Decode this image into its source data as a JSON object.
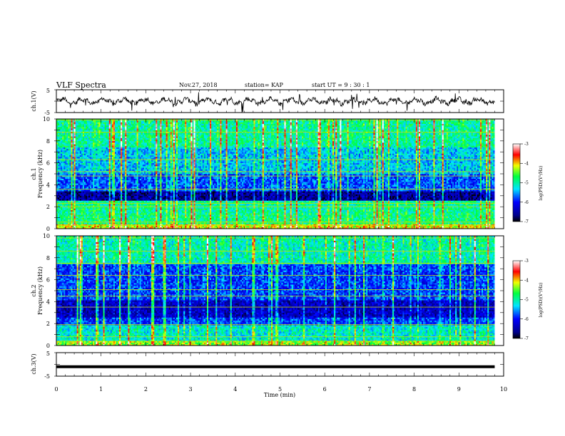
{
  "header": {
    "title": "VLF Spectra",
    "date": "Nov.27, 2018",
    "station": "station= KAP",
    "start": "start  UT =   9 : 30 : 1"
  },
  "chart_data": [
    {
      "type": "line",
      "name": "ch1-waveform",
      "ylabel": "ch.1(V)",
      "ylim": [
        -5,
        5
      ],
      "yticks": [
        "5",
        "-5"
      ],
      "xlim": [
        0,
        10
      ],
      "data_extent": [
        0,
        9.8
      ],
      "color": "#000000"
    },
    {
      "type": "heatmap",
      "name": "ch1-spectrogram",
      "ylabel": "ch.1\nFrequency (kHz)",
      "ylim": [
        0,
        10
      ],
      "yticks": [
        "0",
        "2",
        "4",
        "6",
        "8",
        "10"
      ],
      "xlim": [
        0,
        10
      ],
      "data_extent": [
        0,
        9.8
      ],
      "colorbar": {
        "label": "log(PSD)(V²/Hz)",
        "range": [
          -7,
          -3
        ],
        "ticks": [
          "-3",
          "-4",
          "-5",
          "-6",
          "-7"
        ]
      }
    },
    {
      "type": "heatmap",
      "name": "ch2-spectrogram",
      "ylabel": "ch.2\nFrequency (kHz)",
      "ylim": [
        0,
        10
      ],
      "yticks": [
        "0",
        "2",
        "4",
        "6",
        "8",
        "10"
      ],
      "xlim": [
        0,
        10
      ],
      "data_extent": [
        0,
        9.8
      ],
      "colorbar": {
        "label": "log(PSD)(V²/Hz)",
        "range": [
          -7,
          -3
        ],
        "ticks": [
          "-3",
          "-4",
          "-5",
          "-6",
          "-7"
        ]
      }
    },
    {
      "type": "line",
      "name": "ch3-waveform",
      "ylabel": "ch.3(V)",
      "ylim": [
        -5,
        5
      ],
      "yticks": [
        "5",
        "-5"
      ],
      "xlim": [
        0,
        10
      ],
      "data_extent": [
        0,
        9.8
      ],
      "value": -1,
      "color": "#000000"
    }
  ],
  "xaxis": {
    "label": "Time  (min)",
    "ticks": [
      "0",
      "1",
      "2",
      "3",
      "4",
      "5",
      "6",
      "7",
      "8",
      "9",
      "10"
    ]
  }
}
